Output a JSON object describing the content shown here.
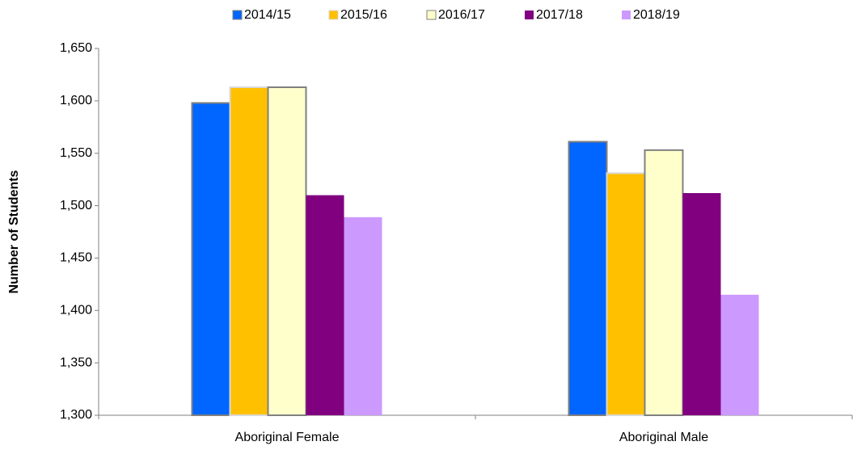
{
  "chart_data": {
    "type": "bar",
    "categories": [
      "Aboriginal Female",
      "Aboriginal Male"
    ],
    "series": [
      {
        "name": "2014/15",
        "color": "#0066ff",
        "edgecolor": "#808080",
        "values": [
          1598,
          1561
        ]
      },
      {
        "name": "2015/16",
        "color": "#ffc000",
        "edgecolor": "#d9d9d9",
        "values": [
          1613,
          1531
        ]
      },
      {
        "name": "2016/17",
        "color": "#ffffcc",
        "edgecolor": "#808080",
        "values": [
          1613,
          1553
        ]
      },
      {
        "name": "2017/18",
        "color": "#800080",
        "values": [
          1510,
          1512
        ]
      },
      {
        "name": "2018/19",
        "color": "#cc99ff",
        "values": [
          1489,
          1415
        ]
      }
    ],
    "ylabel": "Number of Students",
    "ylim": [
      1300,
      1650
    ],
    "yticks": [
      {
        "value": 1300,
        "label": "1,300"
      },
      {
        "value": 1350,
        "label": "1,350"
      },
      {
        "value": 1400,
        "label": "1,400"
      },
      {
        "value": 1450,
        "label": "1,450"
      },
      {
        "value": 1500,
        "label": "1,500"
      },
      {
        "value": 1550,
        "label": "1,550"
      },
      {
        "value": 1600,
        "label": "1,600"
      },
      {
        "value": 1650,
        "label": "1,650"
      }
    ],
    "legend": "top",
    "grid": false
  }
}
